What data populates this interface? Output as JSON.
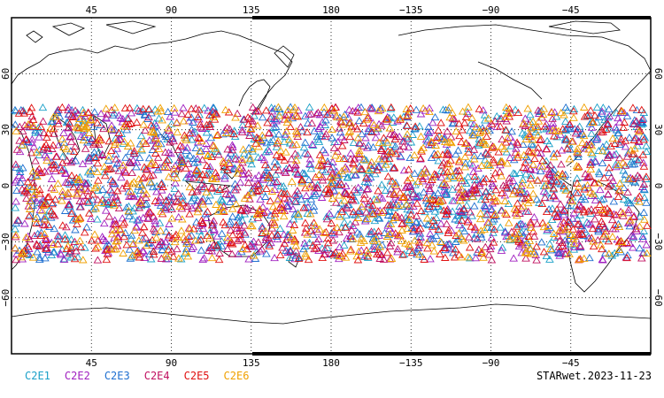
{
  "map": {
    "top_lon_labels": [
      "45",
      "90",
      "135",
      "180",
      "−135",
      "−90",
      "−45"
    ],
    "bottom_lon_labels": [
      "45",
      "90",
      "135",
      "180",
      "−135",
      "−90",
      "−45"
    ],
    "lat_labels": [
      "60",
      "30",
      "0",
      "−30",
      "−60"
    ],
    "lon_grid_degrees": [
      45,
      90,
      135,
      180,
      225,
      270,
      315
    ],
    "lat_grid_degrees": [
      60,
      30,
      0,
      -30,
      -60
    ],
    "lon_range": [
      0,
      360
    ],
    "lat_range": [
      -90,
      90
    ],
    "grid": "dotted",
    "marker": "open-triangle",
    "observation_band_lat": [
      -40,
      42
    ]
  },
  "legend": [
    {
      "label": "C2E1",
      "color": "#1aa0c8"
    },
    {
      "label": "C2E2",
      "color": "#a020c0"
    },
    {
      "label": "C2E3",
      "color": "#1f6fd0"
    },
    {
      "label": "C2E4",
      "color": "#c01060"
    },
    {
      "label": "C2E5",
      "color": "#e01010"
    },
    {
      "label": "C2E6",
      "color": "#f0a000"
    }
  ],
  "stamp": "STARwet.2023-11-23"
}
